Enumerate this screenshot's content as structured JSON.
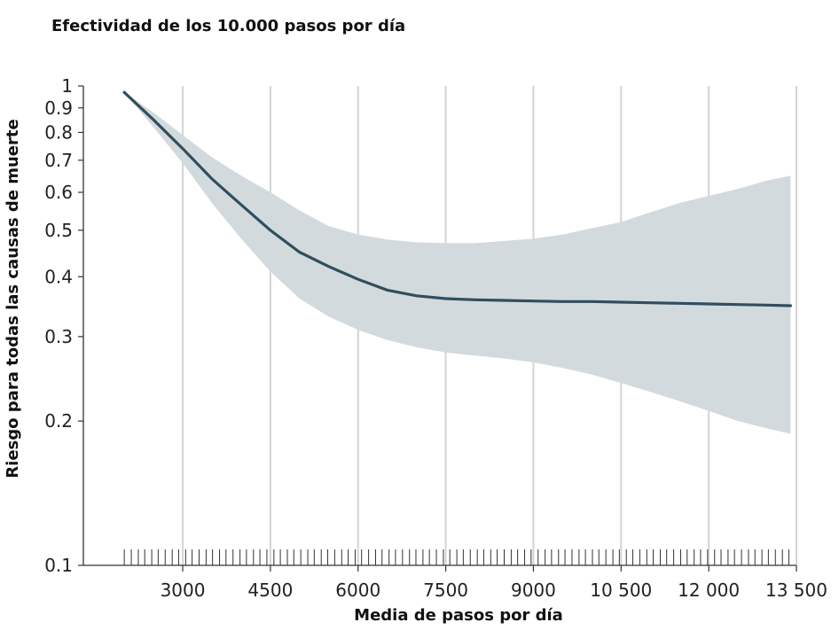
{
  "chart_data": {
    "type": "line",
    "title": "Efectividad de los 10.000 pasos por día",
    "xlabel": "Media de pasos por día",
    "ylabel": "Riesgo para todas las causas de muerte",
    "x_ticks": [
      3000,
      4500,
      6000,
      7500,
      9000,
      10500,
      12000,
      13500
    ],
    "x_tick_labels": [
      "3000",
      "4500",
      "6000",
      "7500",
      "9000",
      "10 500",
      "12 000",
      "13 500"
    ],
    "y_ticks": [
      0.1,
      0.2,
      0.3,
      0.4,
      0.5,
      0.6,
      0.7,
      0.8,
      0.9,
      1
    ],
    "y_tick_labels": [
      "0.1",
      "0.2",
      "0.3",
      "0.4",
      "0.5",
      "0.6",
      "0.7",
      "0.8",
      "0.9",
      "1"
    ],
    "y_scale": "log",
    "xlim": [
      1300,
      13500
    ],
    "ylim": [
      0.1,
      1
    ],
    "grid": "vertical",
    "series": [
      {
        "x": [
          2000,
          2500,
          3000,
          3500,
          4000,
          4500,
          5000,
          5500,
          6000,
          6500,
          7000,
          7500,
          8000,
          8500,
          9000,
          9500,
          10000,
          10500,
          11000,
          11500,
          12000,
          12500,
          13000,
          13400
        ],
        "y": [
          0.97,
          0.85,
          0.74,
          0.64,
          0.565,
          0.5,
          0.45,
          0.42,
          0.395,
          0.375,
          0.365,
          0.36,
          0.358,
          0.357,
          0.356,
          0.355,
          0.355,
          0.354,
          0.353,
          0.352,
          0.351,
          0.35,
          0.349,
          0.348
        ],
        "lower": [
          0.97,
          0.82,
          0.69,
          0.57,
          0.48,
          0.41,
          0.36,
          0.33,
          0.31,
          0.295,
          0.285,
          0.278,
          0.274,
          0.27,
          0.265,
          0.258,
          0.25,
          0.24,
          0.23,
          0.22,
          0.21,
          0.2,
          0.193,
          0.188
        ],
        "upper": [
          0.97,
          0.88,
          0.79,
          0.71,
          0.65,
          0.6,
          0.55,
          0.51,
          0.49,
          0.478,
          0.472,
          0.47,
          0.47,
          0.475,
          0.48,
          0.49,
          0.505,
          0.52,
          0.545,
          0.57,
          0.59,
          0.61,
          0.635,
          0.65
        ]
      }
    ],
    "rug": [
      2000,
      2120,
      2240,
      2350,
      2470,
      2580,
      2700,
      2820,
      2930,
      3050,
      3160,
      3280,
      3400,
      3510,
      3630,
      3740,
      3860,
      3980,
      4090,
      4210,
      4320,
      4440,
      4560,
      4670,
      4790,
      4900,
      5020,
      5140,
      5250,
      5370,
      5480,
      5600,
      5720,
      5830,
      5950,
      6060,
      6180,
      6300,
      6410,
      6530,
      6640,
      6760,
      6880,
      6990,
      7110,
      7220,
      7340,
      7460,
      7570,
      7690,
      7800,
      7920,
      8040,
      8150,
      8270,
      8380,
      8500,
      8620,
      8730,
      8850,
      8960,
      9080,
      9200,
      9310,
      9430,
      9540,
      9660,
      9780,
      9890,
      10010,
      10120,
      10240,
      10360,
      10470,
      10590,
      10700,
      10820,
      10940,
      11050,
      11170,
      11280,
      11400,
      11520,
      11630,
      11750,
      11860,
      11980,
      12100,
      12210,
      12330,
      12440,
      12560,
      12680,
      12790,
      12910,
      13020,
      13140,
      13260,
      13370
    ]
  }
}
